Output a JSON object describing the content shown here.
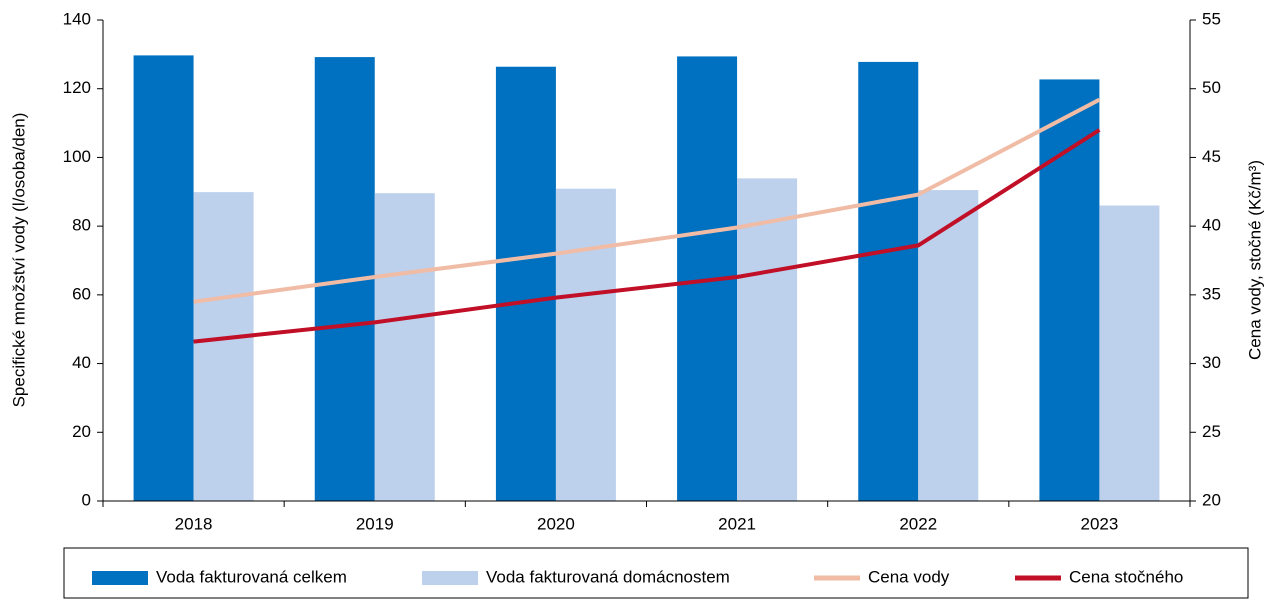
{
  "chart_data": {
    "type": "bar",
    "categories": [
      "2018",
      "2019",
      "2020",
      "2021",
      "2022",
      "2023"
    ],
    "y_label": "Specifické množství vody (l/osoba/den)",
    "y2_label": "Cena vody, stočné (Kč/m³)",
    "ylim": [
      0,
      140
    ],
    "yticks": [
      0,
      20,
      40,
      60,
      80,
      100,
      120,
      140
    ],
    "y2lim": [
      20,
      55
    ],
    "y2ticks": [
      20,
      25,
      30,
      35,
      40,
      45,
      50,
      55
    ],
    "series": [
      {
        "name": "Voda fakturovaná celkem",
        "type": "bar",
        "color": "#0070c0",
        "values": [
          129.7,
          129.2,
          126.4,
          129.4,
          127.8,
          122.7
        ]
      },
      {
        "name": "Voda fakturovaná domácnostem",
        "type": "bar",
        "color": "#bdd0ec",
        "values": [
          89.9,
          89.6,
          90.9,
          93.9,
          90.5,
          86.0
        ]
      },
      {
        "name": "Cena vody",
        "type": "line",
        "axis": "y2",
        "color": "#f0bca6",
        "values": [
          34.5,
          36.3,
          38.0,
          39.9,
          42.3,
          49.2
        ]
      },
      {
        "name": "Cena stočného",
        "type": "line",
        "axis": "y2",
        "color": "#c00f26",
        "values": [
          31.6,
          33.0,
          34.8,
          36.3,
          38.6,
          47.0
        ]
      }
    ],
    "legend": "bottom",
    "grid": false
  }
}
